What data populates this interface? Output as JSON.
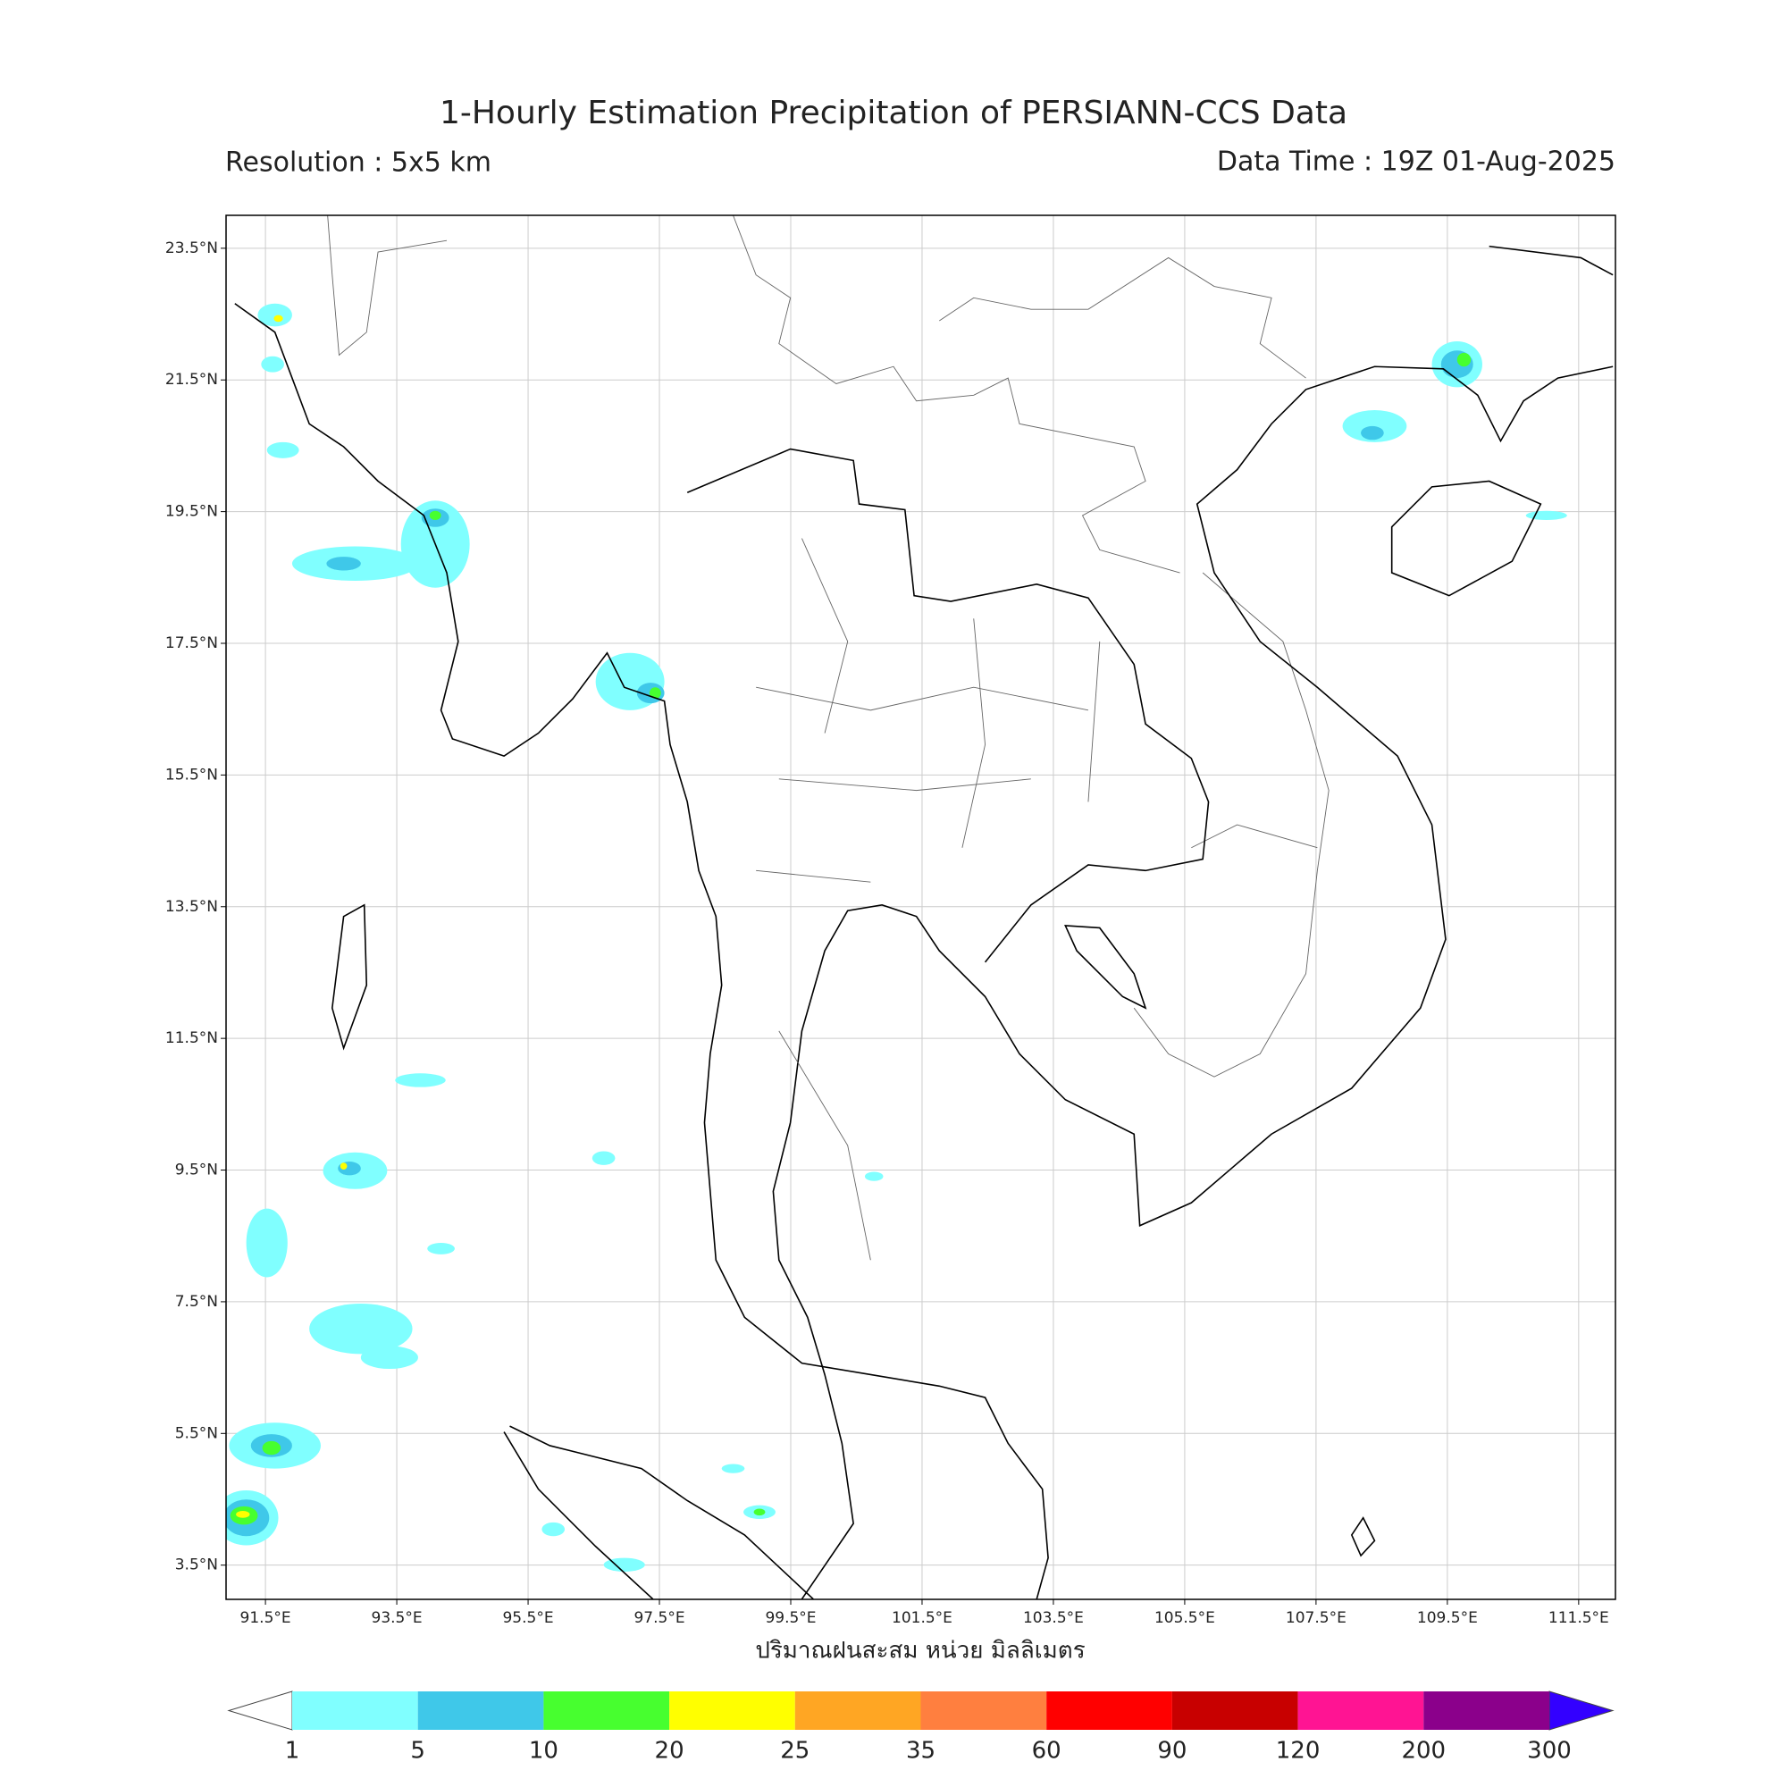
{
  "header": {
    "title": "1-Hourly Estimation Precipitation of PERSIANN-CCS Data",
    "resolution": "Resolution : 5x5 km",
    "data_time": "Data Time : 19Z 01-Aug-2025"
  },
  "map": {
    "xlim": [
      90.9,
      112.06
    ],
    "ylim": [
      2.98,
      24.0
    ],
    "grid": true,
    "xticks": [
      {
        "value": 91.5,
        "label": "91.5°E"
      },
      {
        "value": 93.5,
        "label": "93.5°E"
      },
      {
        "value": 95.5,
        "label": "95.5°E"
      },
      {
        "value": 97.5,
        "label": "97.5°E"
      },
      {
        "value": 99.5,
        "label": "99.5°E"
      },
      {
        "value": 101.5,
        "label": "101.5°E"
      },
      {
        "value": 103.5,
        "label": "103.5°E"
      },
      {
        "value": 105.5,
        "label": "105.5°E"
      },
      {
        "value": 107.5,
        "label": "107.5°E"
      },
      {
        "value": 109.5,
        "label": "109.5°E"
      },
      {
        "value": 111.5,
        "label": "111.5°E"
      }
    ],
    "yticks": [
      {
        "value": 23.5,
        "label": "23.5°N"
      },
      {
        "value": 21.5,
        "label": "21.5°N"
      },
      {
        "value": 19.5,
        "label": "19.5°N"
      },
      {
        "value": 17.5,
        "label": "17.5°N"
      },
      {
        "value": 15.5,
        "label": "15.5°N"
      },
      {
        "value": 13.5,
        "label": "13.5°N"
      },
      {
        "value": 11.5,
        "label": "11.5°N"
      },
      {
        "value": 9.5,
        "label": "9.5°N"
      },
      {
        "value": 7.5,
        "label": "7.5°N"
      },
      {
        "value": 5.5,
        "label": "5.5°N"
      },
      {
        "value": 3.5,
        "label": "3.5°N"
      }
    ],
    "xlabel": "ปริมาณฝนสะสม หน่วย มิลลิเมตร"
  },
  "colorbar": {
    "levels": [
      1,
      5,
      10,
      20,
      25,
      35,
      60,
      90,
      120,
      200,
      300
    ],
    "colors": [
      "#80ffff",
      "#3fc8e9",
      "#47ff2f",
      "#ffff00",
      "#ffa623",
      "#ff7f3f",
      "#ff0000",
      "#c80000",
      "#ff1493",
      "#8b008b"
    ],
    "under_color": "#ffffff",
    "over_color": "#3300ff"
  }
}
